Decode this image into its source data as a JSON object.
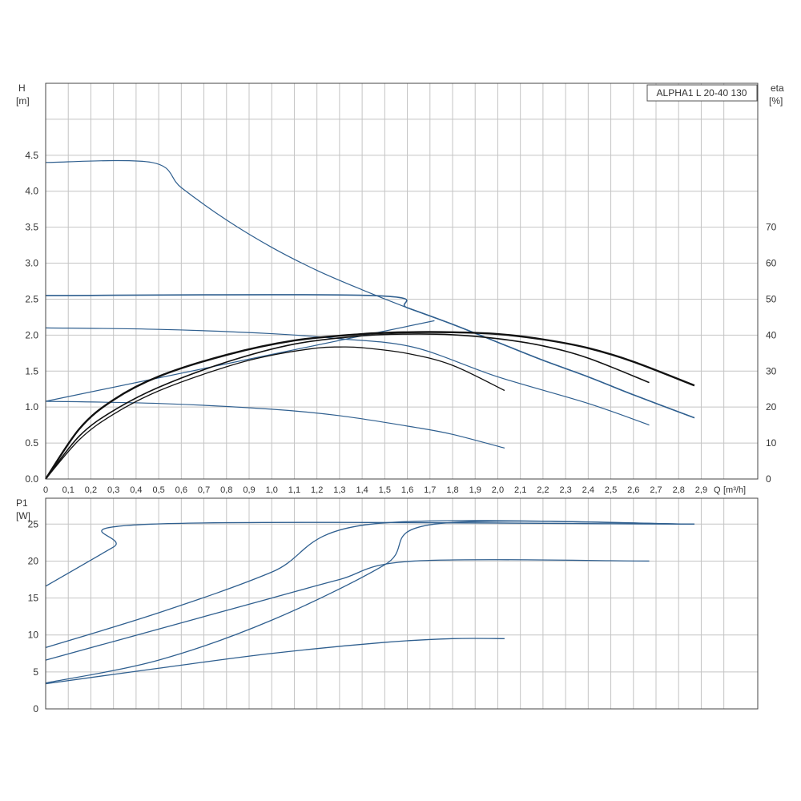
{
  "colors": {
    "blue": "#2f5f8f",
    "black": "#111111",
    "grid": "#c4c4c4",
    "frame": "#444444",
    "text": "#333333"
  },
  "chart_data": [
    {
      "type": "line",
      "title": "ALPHA1 L 20-40 130",
      "ylabel": "H",
      "yunit": "[m]",
      "y2label": "eta",
      "y2unit": "[%]",
      "xlabel": "Q",
      "xunit": "[m³/h]",
      "xlim": [
        0,
        3.15
      ],
      "ylim": [
        0,
        5.5
      ],
      "y2lim": [
        0,
        110
      ],
      "grid": true,
      "x_tick_labels": [
        "0",
        "0,1",
        "0,2",
        "0,3",
        "0,4",
        "0,5",
        "0,6",
        "0,7",
        "0,8",
        "0,9",
        "1,0",
        "1,1",
        "1,2",
        "1,3",
        "1,4",
        "1,5",
        "1,6",
        "1,7",
        "1,8",
        "1,9",
        "2,0",
        "2,1",
        "2,2",
        "2,3",
        "2,4",
        "2,5",
        "2,6",
        "2,7",
        "2,8",
        "2,9"
      ],
      "y_tick_labels": [
        "0.0",
        "0.5",
        "1.0",
        "1.5",
        "2.0",
        "2.5",
        "3.0",
        "3.5",
        "4.0",
        "4.5"
      ],
      "y2_tick_labels": [
        "0",
        "10",
        "20",
        "30",
        "40",
        "50",
        "60",
        "70"
      ],
      "series": [
        {
          "axis": "H",
          "color": "blue",
          "x": [
            0,
            0.47,
            0.6,
            0.8,
            1.0,
            1.2,
            1.4,
            1.6,
            1.8,
            2.0,
            2.2,
            2.4,
            2.6,
            2.87
          ],
          "y": [
            4.4,
            4.4,
            4.05,
            3.6,
            3.22,
            2.9,
            2.63,
            2.38,
            2.15,
            1.9,
            1.65,
            1.42,
            1.17,
            0.85
          ]
        },
        {
          "axis": "H",
          "color": "blue",
          "x": [
            0,
            1.44,
            1.6,
            1.8,
            2.0,
            2.2,
            2.4,
            2.6,
            2.87
          ],
          "y": [
            2.55,
            2.55,
            2.38,
            2.15,
            1.9,
            1.65,
            1.42,
            1.17,
            0.85
          ]
        },
        {
          "axis": "H",
          "color": "blue",
          "x": [
            0,
            1.72
          ],
          "y": [
            1.08,
            2.2
          ]
        },
        {
          "axis": "H",
          "color": "blue",
          "x": [
            0,
            0.5,
            1.0,
            1.3,
            1.63,
            2.0,
            2.4,
            2.67
          ],
          "y": [
            2.1,
            2.08,
            2.02,
            1.95,
            1.83,
            1.42,
            1.05,
            0.75
          ]
        },
        {
          "axis": "H",
          "color": "blue",
          "x": [
            0,
            0.5,
            1.0,
            1.3,
            1.63,
            1.8,
            2.03
          ],
          "y": [
            1.08,
            1.05,
            0.97,
            0.88,
            0.72,
            0.62,
            0.43
          ]
        },
        {
          "axis": "eta",
          "color": "black",
          "x": [
            0,
            0.15,
            0.3,
            0.5,
            0.8,
            1.1,
            1.4,
            1.6,
            1.8,
            2.0,
            2.2,
            2.4,
            2.6,
            2.87
          ],
          "y": [
            0,
            14,
            22,
            28.5,
            34.5,
            38.5,
            40.3,
            40.8,
            40.8,
            40.3,
            38.8,
            36.4,
            32.6,
            26
          ]
        },
        {
          "axis": "eta",
          "color": "black",
          "x": [
            0,
            0.15,
            0.3,
            0.5,
            0.8,
            1.1,
            1.4,
            1.6,
            1.8,
            2.0,
            2.2,
            2.4,
            2.67
          ],
          "y": [
            0,
            12,
            19,
            25.5,
            32.5,
            37.5,
            39.8,
            40.3,
            40.1,
            39,
            37,
            33.6,
            26.8
          ]
        },
        {
          "axis": "eta",
          "color": "black",
          "x": [
            0,
            0.15,
            0.3,
            0.5,
            0.8,
            1.0,
            1.2,
            1.3,
            1.4,
            1.6,
            1.8,
            2.03
          ],
          "y": [
            0,
            11,
            18,
            24.5,
            31.2,
            34.4,
            36.4,
            36.7,
            36.5,
            34.9,
            31.6,
            24.6
          ]
        }
      ]
    },
    {
      "type": "line",
      "ylabel": "P1",
      "yunit": "[W]",
      "xlim": [
        0,
        3.15
      ],
      "ylim": [
        0,
        28.5
      ],
      "grid": true,
      "y_tick_labels": [
        "0",
        "5",
        "10",
        "15",
        "20",
        "25"
      ],
      "series": [
        {
          "color": "blue",
          "x": [
            0,
            0.3,
            0.47,
            2.87
          ],
          "y": [
            16.6,
            21.9,
            25,
            25
          ]
        },
        {
          "color": "blue",
          "x": [
            0,
            0.5,
            1.0,
            1.44,
            2.87
          ],
          "y": [
            8.3,
            13,
            18.5,
            25,
            25
          ]
        },
        {
          "color": "blue",
          "x": [
            0,
            0.5,
            1.0,
            1.5,
            1.72,
            2.87
          ],
          "y": [
            3.5,
            6.6,
            12,
            19.5,
            25,
            25
          ]
        },
        {
          "color": "blue",
          "x": [
            0,
            0.5,
            1.0,
            1.3,
            1.63,
            2.67
          ],
          "y": [
            6.6,
            10.8,
            15,
            17.5,
            20,
            20
          ]
        },
        {
          "color": "blue",
          "x": [
            0,
            0.5,
            1.0,
            1.5,
            1.8,
            2.03
          ],
          "y": [
            3.4,
            5.5,
            7.5,
            9,
            9.5,
            9.5
          ]
        }
      ]
    }
  ]
}
